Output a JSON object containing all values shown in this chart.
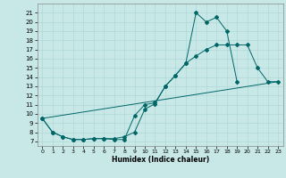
{
  "xlabel": "Humidex (Indice chaleur)",
  "bg_color": "#c8e8e8",
  "line_color": "#006666",
  "grid_color": "#b0d8d8",
  "xlim": [
    -0.5,
    23.5
  ],
  "ylim": [
    6.5,
    22.0
  ],
  "xticks": [
    0,
    1,
    2,
    3,
    4,
    5,
    6,
    7,
    8,
    9,
    10,
    11,
    12,
    13,
    14,
    15,
    16,
    17,
    18,
    19,
    20,
    21,
    22,
    23
  ],
  "yticks": [
    7,
    8,
    9,
    10,
    11,
    12,
    13,
    14,
    15,
    16,
    17,
    18,
    19,
    20,
    21
  ],
  "line1_x": [
    0,
    1,
    2,
    3,
    4,
    5,
    6,
    7,
    8,
    9,
    10,
    11,
    12,
    13,
    14,
    15,
    16,
    17,
    18,
    19,
    20,
    21,
    22,
    23
  ],
  "line1_y": [
    9.5,
    8.0,
    7.5,
    7.2,
    7.2,
    7.3,
    7.3,
    7.3,
    7.5,
    8.0,
    10.5,
    11.1,
    13.0,
    14.2,
    15.5,
    21.0,
    20.0,
    20.5,
    19.0,
    13.5,
    null,
    null,
    null,
    null
  ],
  "line2_x": [
    0,
    1,
    2,
    3,
    4,
    5,
    6,
    7,
    8,
    9,
    10,
    11,
    12,
    13,
    14,
    15,
    16,
    17,
    18,
    19,
    20,
    21,
    22,
    23
  ],
  "line2_y": [
    9.5,
    8.0,
    7.5,
    7.2,
    7.2,
    7.3,
    7.3,
    7.2,
    7.2,
    9.8,
    11.0,
    11.2,
    13.0,
    14.2,
    15.5,
    16.3,
    17.0,
    17.5,
    17.5,
    17.5,
    17.5,
    15.0,
    13.5,
    13.5
  ],
  "line3_x": [
    0,
    23
  ],
  "line3_y": [
    9.5,
    13.5
  ],
  "markersize": 2.0
}
